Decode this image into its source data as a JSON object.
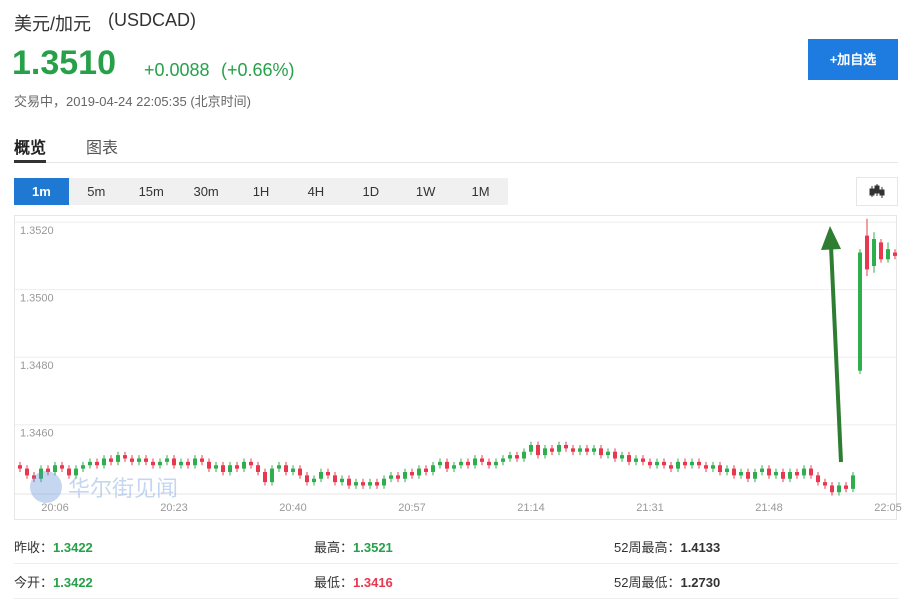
{
  "header": {
    "title": "美元/加元",
    "code": "(USDCAD)",
    "price": "1.3510",
    "change": "+0.0088",
    "change_pct": "(+0.66%)",
    "status": "交易中，2019-04-24 22:05:35 (北京时间)",
    "button": "+加自选"
  },
  "tabs": [
    "概览",
    "图表"
  ],
  "periods": [
    "1m",
    "5m",
    "15m",
    "30m",
    "1H",
    "4H",
    "1D",
    "1W",
    "1M"
  ],
  "watermark": "华尔街见闻",
  "stats": [
    [
      {
        "label": "昨收：",
        "value": "1.3422"
      },
      {
        "label": "最高：",
        "value": "1.3521"
      },
      {
        "label": "52周最高：",
        "value": "1.4133"
      }
    ],
    [
      {
        "label": "今开：",
        "value": "1.3422"
      },
      {
        "label": "最低：",
        "value": "1.3416"
      },
      {
        "label": "52周最低：",
        "value": "1.2730"
      }
    ]
  ],
  "chart_data": {
    "type": "candlestick",
    "up_color": "#2fae4e",
    "down_color": "#e8384f",
    "grid": true,
    "ylim": [
      1.3438,
      1.3523
    ],
    "yticks": [
      {
        "value": 1.346,
        "label": "1.3460"
      },
      {
        "value": 1.348,
        "label": "1.3480"
      },
      {
        "value": 1.35,
        "label": "1.3500"
      },
      {
        "value": 1.352,
        "label": "1.3520"
      }
    ],
    "categories": [
      null,
      null,
      null,
      null,
      null,
      "20:06",
      null,
      null,
      null,
      null,
      null,
      null,
      null,
      null,
      null,
      null,
      null,
      null,
      null,
      null,
      null,
      null,
      "20:23",
      null,
      null,
      null,
      null,
      null,
      null,
      null,
      null,
      null,
      null,
      null,
      null,
      null,
      null,
      null,
      null,
      "20:40",
      null,
      null,
      null,
      null,
      null,
      null,
      null,
      null,
      null,
      null,
      null,
      null,
      null,
      null,
      null,
      null,
      "20:57",
      null,
      null,
      null,
      null,
      null,
      null,
      null,
      null,
      null,
      null,
      null,
      null,
      null,
      null,
      null,
      null,
      "21:14",
      null,
      null,
      null,
      null,
      null,
      null,
      null,
      null,
      null,
      null,
      null,
      null,
      null,
      null,
      null,
      null,
      "21:31",
      null,
      null,
      null,
      null,
      null,
      null,
      null,
      null,
      null,
      null,
      null,
      null,
      null,
      null,
      null,
      null,
      "21:48",
      null,
      null,
      null,
      null,
      null,
      null,
      null,
      null,
      null,
      null,
      null,
      null,
      null,
      null,
      null,
      null,
      "22:05",
      null
    ],
    "open": [
      1.3448,
      1.3447,
      1.3445,
      1.3444,
      1.3447,
      1.3446,
      1.3448,
      1.3447,
      1.3445,
      1.3447,
      1.3448,
      1.3449,
      1.3448,
      1.345,
      1.3449,
      1.3451,
      1.345,
      1.3449,
      1.345,
      1.3449,
      1.3448,
      1.3449,
      1.345,
      1.3448,
      1.3449,
      1.3448,
      1.345,
      1.3449,
      1.3447,
      1.3448,
      1.3446,
      1.3448,
      1.3447,
      1.3449,
      1.3448,
      1.3446,
      1.3443,
      1.3447,
      1.3448,
      1.3446,
      1.3447,
      1.3445,
      1.3443,
      1.3444,
      1.3446,
      1.3445,
      1.3443,
      1.3444,
      1.3442,
      1.3443,
      1.3442,
      1.3443,
      1.3442,
      1.3444,
      1.3445,
      1.3444,
      1.3446,
      1.3445,
      1.3447,
      1.3446,
      1.3448,
      1.3449,
      1.3447,
      1.3448,
      1.3449,
      1.3448,
      1.345,
      1.3449,
      1.3448,
      1.3449,
      1.345,
      1.3451,
      1.345,
      1.3452,
      1.3454,
      1.3451,
      1.3453,
      1.3452,
      1.3454,
      1.3453,
      1.3452,
      1.3453,
      1.3452,
      1.3453,
      1.3451,
      1.3452,
      1.345,
      1.3451,
      1.3449,
      1.345,
      1.3449,
      1.3448,
      1.3449,
      1.3448,
      1.3447,
      1.3449,
      1.3448,
      1.3449,
      1.3448,
      1.3447,
      1.3448,
      1.3446,
      1.3447,
      1.3445,
      1.3446,
      1.3444,
      1.3446,
      1.3447,
      1.3445,
      1.3446,
      1.3444,
      1.3446,
      1.3445,
      1.3447,
      1.3445,
      1.3443,
      1.3442,
      1.344,
      1.3442,
      1.3441,
      1.3476,
      1.3516,
      1.3507,
      1.3514,
      1.3509,
      1.3511
    ],
    "high": [
      1.3449,
      1.3448,
      1.3446,
      1.3448,
      1.3448,
      1.3449,
      1.3449,
      1.3448,
      1.3448,
      1.3449,
      1.345,
      1.345,
      1.3451,
      1.3451,
      1.3452,
      1.3452,
      1.3451,
      1.3451,
      1.3451,
      1.345,
      1.345,
      1.3451,
      1.3451,
      1.345,
      1.345,
      1.3451,
      1.3451,
      1.345,
      1.3449,
      1.3449,
      1.3449,
      1.3449,
      1.345,
      1.345,
      1.3449,
      1.3447,
      1.3448,
      1.3449,
      1.3449,
      1.3448,
      1.3448,
      1.3446,
      1.3445,
      1.3447,
      1.3447,
      1.3446,
      1.3445,
      1.3445,
      1.3444,
      1.3444,
      1.3444,
      1.3444,
      1.3445,
      1.3446,
      1.3446,
      1.3447,
      1.3447,
      1.3448,
      1.3448,
      1.3449,
      1.345,
      1.345,
      1.3449,
      1.345,
      1.345,
      1.3451,
      1.3451,
      1.345,
      1.345,
      1.3451,
      1.3452,
      1.3452,
      1.3453,
      1.3455,
      1.3455,
      1.3454,
      1.3454,
      1.3455,
      1.3455,
      1.3454,
      1.3454,
      1.3454,
      1.3454,
      1.3454,
      1.3453,
      1.3453,
      1.3452,
      1.3452,
      1.3451,
      1.3451,
      1.345,
      1.345,
      1.345,
      1.3449,
      1.345,
      1.345,
      1.345,
      1.345,
      1.3449,
      1.3449,
      1.3449,
      1.3448,
      1.3448,
      1.3447,
      1.3447,
      1.3447,
      1.3448,
      1.3448,
      1.3447,
      1.3447,
      1.3447,
      1.3447,
      1.3448,
      1.3448,
      1.3446,
      1.3444,
      1.3443,
      1.3443,
      1.3443,
      1.3446,
      1.3512,
      1.3521,
      1.3517,
      1.3515,
      1.3514,
      1.3512
    ],
    "low": [
      1.3446,
      1.3444,
      1.3443,
      1.3443,
      1.3445,
      1.3445,
      1.3446,
      1.3444,
      1.3444,
      1.3446,
      1.3447,
      1.3447,
      1.3447,
      1.3448,
      1.3448,
      1.3449,
      1.3448,
      1.3448,
      1.3448,
      1.3447,
      1.3447,
      1.3448,
      1.3447,
      1.3447,
      1.3447,
      1.3447,
      1.3448,
      1.3446,
      1.3446,
      1.3445,
      1.3445,
      1.3446,
      1.3446,
      1.3447,
      1.3445,
      1.3442,
      1.3442,
      1.3446,
      1.3445,
      1.3445,
      1.3444,
      1.3442,
      1.3442,
      1.3443,
      1.3444,
      1.3442,
      1.3442,
      1.3441,
      1.3441,
      1.3441,
      1.3441,
      1.3441,
      1.3441,
      1.3443,
      1.3443,
      1.3443,
      1.3444,
      1.3444,
      1.3445,
      1.3445,
      1.3447,
      1.3446,
      1.3446,
      1.3447,
      1.3447,
      1.3447,
      1.3448,
      1.3447,
      1.3447,
      1.3448,
      1.3449,
      1.3449,
      1.3449,
      1.3451,
      1.345,
      1.345,
      1.3451,
      1.3451,
      1.3452,
      1.3451,
      1.3451,
      1.3451,
      1.3451,
      1.345,
      1.345,
      1.3449,
      1.3449,
      1.3448,
      1.3448,
      1.3448,
      1.3447,
      1.3447,
      1.3447,
      1.3446,
      1.3446,
      1.3447,
      1.3447,
      1.3447,
      1.3446,
      1.3446,
      1.3445,
      1.3445,
      1.3444,
      1.3444,
      1.3443,
      1.3443,
      1.3445,
      1.3444,
      1.3444,
      1.3443,
      1.3443,
      1.3444,
      1.3444,
      1.3444,
      1.3442,
      1.3441,
      1.3439,
      1.3439,
      1.344,
      1.344,
      1.3475,
      1.3504,
      1.3505,
      1.3508,
      1.3508,
      1.3509
    ],
    "close": [
      1.3447,
      1.3445,
      1.3444,
      1.3447,
      1.3446,
      1.3448,
      1.3447,
      1.3445,
      1.3447,
      1.3448,
      1.3449,
      1.3448,
      1.345,
      1.3449,
      1.3451,
      1.345,
      1.3449,
      1.345,
      1.3449,
      1.3448,
      1.3449,
      1.345,
      1.3448,
      1.3449,
      1.3448,
      1.345,
      1.3449,
      1.3447,
      1.3448,
      1.3446,
      1.3448,
      1.3447,
      1.3449,
      1.3448,
      1.3446,
      1.3443,
      1.3447,
      1.3448,
      1.3446,
      1.3447,
      1.3445,
      1.3443,
      1.3444,
      1.3446,
      1.3445,
      1.3443,
      1.3444,
      1.3442,
      1.3443,
      1.3442,
      1.3443,
      1.3442,
      1.3444,
      1.3445,
      1.3444,
      1.3446,
      1.3445,
      1.3447,
      1.3446,
      1.3448,
      1.3449,
      1.3447,
      1.3448,
      1.3449,
      1.3448,
      1.345,
      1.3449,
      1.3448,
      1.3449,
      1.345,
      1.3451,
      1.345,
      1.3452,
      1.3454,
      1.3451,
      1.3453,
      1.3452,
      1.3454,
      1.3453,
      1.3452,
      1.3453,
      1.3452,
      1.3453,
      1.3451,
      1.3452,
      1.345,
      1.3451,
      1.3449,
      1.345,
      1.3449,
      1.3448,
      1.3449,
      1.3448,
      1.3447,
      1.3449,
      1.3448,
      1.3449,
      1.3448,
      1.3447,
      1.3448,
      1.3446,
      1.3447,
      1.3445,
      1.3446,
      1.3444,
      1.3446,
      1.3447,
      1.3445,
      1.3446,
      1.3444,
      1.3446,
      1.3445,
      1.3447,
      1.3445,
      1.3443,
      1.3442,
      1.344,
      1.3442,
      1.3441,
      1.3445,
      1.3511,
      1.3506,
      1.3515,
      1.3509,
      1.3512,
      1.351
    ]
  }
}
